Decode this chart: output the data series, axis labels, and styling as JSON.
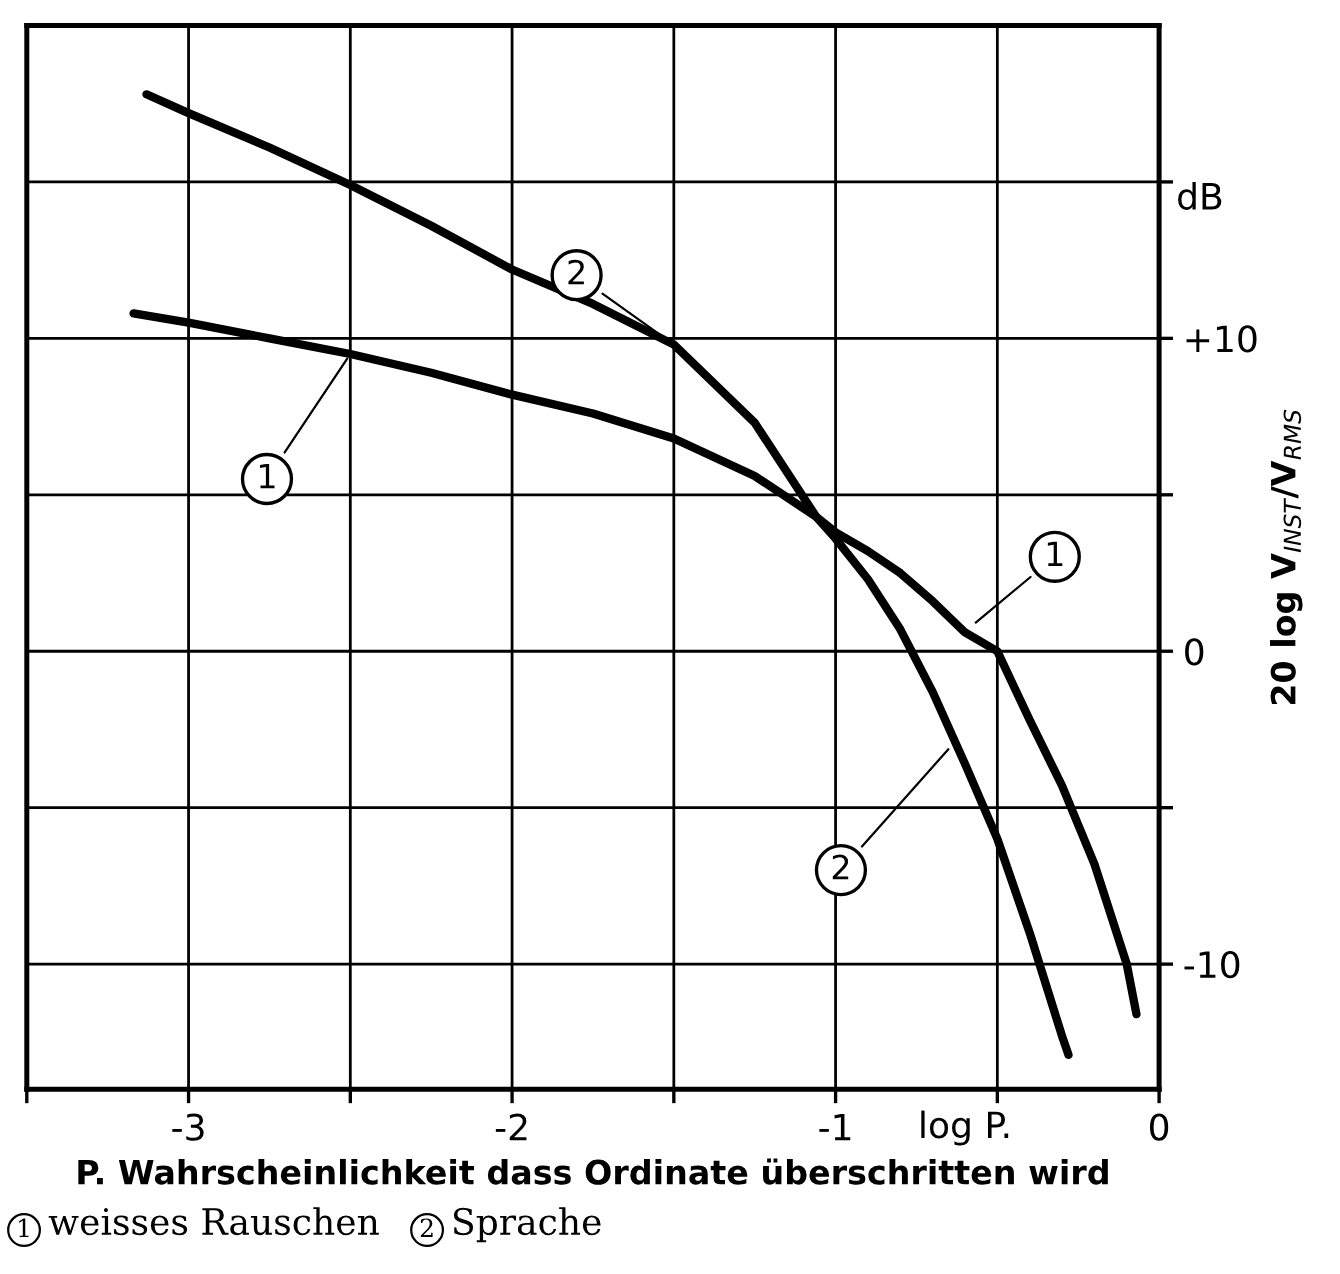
{
  "chart_data": {
    "type": "line",
    "xlabel": "P. Wahrscheinlichkeit dass Ordinate überschritten wird",
    "ylabel": "20 log V$_{INST}$/V$_{RMS}$",
    "xlim": [
      -3.5,
      0
    ],
    "ylim": [
      -14,
      20
    ],
    "xticks": [
      {
        "value": -3.5,
        "label": null
      },
      -3,
      {
        "value": -2.5,
        "label": null
      },
      -2,
      {
        "value": -1.5,
        "label": null
      },
      -1,
      {
        "value": -0.5,
        "label": null
      },
      0
    ],
    "yticks": [
      {
        "value": -10,
        "label": "-10"
      },
      {
        "value": -5,
        "label": null
      },
      0,
      {
        "value": 5,
        "label": null
      },
      {
        "value": 10,
        "label": "+10"
      },
      {
        "value": 15,
        "label": null
      }
    ],
    "grid": true,
    "line_style": "solid",
    "marker": "none",
    "series": [
      {
        "color": "#000000",
        "x": [
          -3.17,
          -3,
          -2.75,
          -2.5,
          -2.25,
          -2,
          -1.75,
          -1.5,
          -1.25,
          -1.06,
          -1,
          -0.9,
          -0.8,
          -0.7,
          -0.6,
          -0.5,
          -0.4,
          -0.3,
          -0.2,
          -0.1,
          -0.07
        ],
        "values": [
          10.8,
          10.5,
          10,
          9.5,
          8.9,
          8.2,
          7.6,
          6.8,
          5.6,
          4.3,
          3.8,
          3.2,
          2.5,
          1.6,
          0.6,
          0,
          -2.2,
          -4.3,
          -6.8,
          -10,
          -11.6
        ]
      },
      {
        "color": "#000000",
        "x": [
          -3.13,
          -3,
          -2.75,
          -2.5,
          -2.25,
          -2,
          -1.75,
          -1.5,
          -1.25,
          -1.06,
          -1,
          -0.9,
          -0.8,
          -0.7,
          -0.6,
          -0.5,
          -0.4,
          -0.3,
          -0.28
        ],
        "values": [
          17.8,
          17.2,
          16.1,
          14.9,
          13.6,
          12.2,
          11.1,
          9.8,
          7.3,
          4.3,
          3.6,
          2.3,
          0.7,
          -1.3,
          -3.6,
          -6,
          -9,
          -12.3,
          -12.9
        ]
      }
    ],
    "annotations": [
      {
        "text": "1",
        "x": -2.5,
        "y": 9.5
      },
      {
        "text": "2",
        "x": -1.5,
        "y": 9.8
      },
      {
        "text": "1",
        "x": -0.58,
        "y": 0.8
      },
      {
        "text": "2",
        "x": -0.64,
        "y": -3
      },
      "dB",
      "log P.",
      "1",
      "weisses Rauschen",
      "2",
      "Sprache"
    ]
  }
}
